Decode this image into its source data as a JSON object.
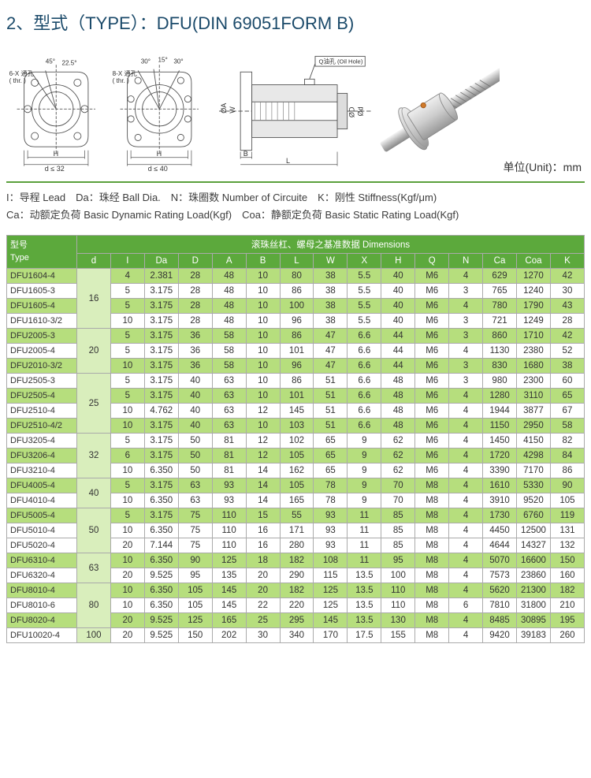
{
  "title": "2、型式（TYPE）：DFU(DIN 69051FORM B)",
  "unit_label": "单位(Unit)：mm",
  "legend_line1": "I：导程 Lead　Da：珠经 Ball Dia.　N：珠圈数 Number of Circuite　K：刚性 Stiffness(Kgf/μm)",
  "legend_line2": "Ca：动额定负荷 Basic Dynamic Rating Load(Kgf)　Coa：静额定负荷 Basic Static Rating Load(Kgf)",
  "diagram_labels": {
    "thr1": "6-X 通孔\n( thr. )",
    "angle45": "45°",
    "angle225": "22.5°",
    "H": "H",
    "d_le_32": "d ≤ 32",
    "thr2": "8-X 通孔\n( thr. )",
    "angle30": "30°",
    "angle15": "15°",
    "d_le_40": "d ≤ 40",
    "oilhole": "Q 油孔\n( Oil Hole )",
    "dimA": "ØA",
    "dimW": "W",
    "dimB": "B",
    "dimL": "L",
    "dimD": "ØD",
    "dimd": "Ød"
  },
  "table": {
    "header_top_left": "型号\nType",
    "header_top_right": "滚珠丝杠、螺母之基准数据 Dimensions",
    "columns": [
      "d",
      "I",
      "Da",
      "D",
      "A",
      "B",
      "L",
      "W",
      "X",
      "H",
      "Q",
      "N",
      "Ca",
      "Coa",
      "K"
    ],
    "column_classes": [
      "c-d",
      "c-i",
      "c-da",
      "c-D",
      "c-A",
      "c-B",
      "c-L",
      "c-W",
      "c-X",
      "c-H",
      "c-Q",
      "c-N",
      "c-Ca",
      "c-Coa",
      "c-K"
    ],
    "d_groups": [
      {
        "d": "16",
        "rows": 4
      },
      {
        "d": "20",
        "rows": 3
      },
      {
        "d": "25",
        "rows": 4
      },
      {
        "d": "32",
        "rows": 3
      },
      {
        "d": "40",
        "rows": 2
      },
      {
        "d": "50",
        "rows": 3
      },
      {
        "d": "63",
        "rows": 2
      },
      {
        "d": "80",
        "rows": 3
      },
      {
        "d": "100",
        "rows": 1
      }
    ],
    "colors": {
      "highlight": "#b6de7d",
      "d_cell": "#d9eebc",
      "plain": "#ffffff"
    },
    "rows": [
      {
        "type": "DFU1604-4",
        "hl": true,
        "cells": [
          "4",
          "2.381",
          "28",
          "48",
          "10",
          "80",
          "38",
          "5.5",
          "40",
          "M6",
          "4",
          "629",
          "1270",
          "42"
        ]
      },
      {
        "type": "DFU1605-3",
        "hl": false,
        "cells": [
          "5",
          "3.175",
          "28",
          "48",
          "10",
          "86",
          "38",
          "5.5",
          "40",
          "M6",
          "3",
          "765",
          "1240",
          "30"
        ]
      },
      {
        "type": "DFU1605-4",
        "hl": true,
        "cells": [
          "5",
          "3.175",
          "28",
          "48",
          "10",
          "100",
          "38",
          "5.5",
          "40",
          "M6",
          "4",
          "780",
          "1790",
          "43"
        ]
      },
      {
        "type": "DFU1610-3/2",
        "hl": false,
        "cells": [
          "10",
          "3.175",
          "28",
          "48",
          "10",
          "96",
          "38",
          "5.5",
          "40",
          "M6",
          "3",
          "721",
          "1249",
          "28"
        ]
      },
      {
        "type": "DFU2005-3",
        "hl": true,
        "cells": [
          "5",
          "3.175",
          "36",
          "58",
          "10",
          "86",
          "47",
          "6.6",
          "44",
          "M6",
          "3",
          "860",
          "1710",
          "42"
        ]
      },
      {
        "type": "DFU2005-4",
        "hl": false,
        "cells": [
          "5",
          "3.175",
          "36",
          "58",
          "10",
          "101",
          "47",
          "6.6",
          "44",
          "M6",
          "4",
          "1130",
          "2380",
          "52"
        ]
      },
      {
        "type": "DFU2010-3/2",
        "hl": true,
        "cells": [
          "10",
          "3.175",
          "36",
          "58",
          "10",
          "96",
          "47",
          "6.6",
          "44",
          "M6",
          "3",
          "830",
          "1680",
          "38"
        ]
      },
      {
        "type": "DFU2505-3",
        "hl": false,
        "cells": [
          "5",
          "3.175",
          "40",
          "63",
          "10",
          "86",
          "51",
          "6.6",
          "48",
          "M6",
          "3",
          "980",
          "2300",
          "60"
        ]
      },
      {
        "type": "DFU2505-4",
        "hl": true,
        "cells": [
          "5",
          "3.175",
          "40",
          "63",
          "10",
          "101",
          "51",
          "6.6",
          "48",
          "M6",
          "4",
          "1280",
          "3110",
          "65"
        ]
      },
      {
        "type": "DFU2510-4",
        "hl": false,
        "cells": [
          "10",
          "4.762",
          "40",
          "63",
          "12",
          "145",
          "51",
          "6.6",
          "48",
          "M6",
          "4",
          "1944",
          "3877",
          "67"
        ]
      },
      {
        "type": "DFU2510-4/2",
        "hl": true,
        "cells": [
          "10",
          "3.175",
          "40",
          "63",
          "10",
          "103",
          "51",
          "6.6",
          "48",
          "M6",
          "4",
          "1150",
          "2950",
          "58"
        ]
      },
      {
        "type": "DFU3205-4",
        "hl": false,
        "cells": [
          "5",
          "3.175",
          "50",
          "81",
          "12",
          "102",
          "65",
          "9",
          "62",
          "M6",
          "4",
          "1450",
          "4150",
          "82"
        ]
      },
      {
        "type": "DFU3206-4",
        "hl": true,
        "cells": [
          "6",
          "3.175",
          "50",
          "81",
          "12",
          "105",
          "65",
          "9",
          "62",
          "M6",
          "4",
          "1720",
          "4298",
          "84"
        ]
      },
      {
        "type": "DFU3210-4",
        "hl": false,
        "cells": [
          "10",
          "6.350",
          "50",
          "81",
          "14",
          "162",
          "65",
          "9",
          "62",
          "M6",
          "4",
          "3390",
          "7170",
          "86"
        ]
      },
      {
        "type": "DFU4005-4",
        "hl": true,
        "cells": [
          "5",
          "3.175",
          "63",
          "93",
          "14",
          "105",
          "78",
          "9",
          "70",
          "M8",
          "4",
          "1610",
          "5330",
          "90"
        ]
      },
      {
        "type": "DFU4010-4",
        "hl": false,
        "cells": [
          "10",
          "6.350",
          "63",
          "93",
          "14",
          "165",
          "78",
          "9",
          "70",
          "M8",
          "4",
          "3910",
          "9520",
          "105"
        ]
      },
      {
        "type": "DFU5005-4",
        "hl": true,
        "cells": [
          "5",
          "3.175",
          "75",
          "110",
          "15",
          "55",
          "93",
          "11",
          "85",
          "M8",
          "4",
          "1730",
          "6760",
          "119"
        ]
      },
      {
        "type": "DFU5010-4",
        "hl": false,
        "cells": [
          "10",
          "6.350",
          "75",
          "110",
          "16",
          "171",
          "93",
          "11",
          "85",
          "M8",
          "4",
          "4450",
          "12500",
          "131"
        ]
      },
      {
        "type": "DFU5020-4",
        "hl": false,
        "cells": [
          "20",
          "7.144",
          "75",
          "110",
          "16",
          "280",
          "93",
          "11",
          "85",
          "M8",
          "4",
          "4644",
          "14327",
          "132"
        ]
      },
      {
        "type": "DFU6310-4",
        "hl": true,
        "cells": [
          "10",
          "6.350",
          "90",
          "125",
          "18",
          "182",
          "108",
          "11",
          "95",
          "M8",
          "4",
          "5070",
          "16600",
          "150"
        ]
      },
      {
        "type": "DFU6320-4",
        "hl": false,
        "cells": [
          "20",
          "9.525",
          "95",
          "135",
          "20",
          "290",
          "115",
          "13.5",
          "100",
          "M8",
          "4",
          "7573",
          "23860",
          "160"
        ]
      },
      {
        "type": "DFU8010-4",
        "hl": true,
        "cells": [
          "10",
          "6.350",
          "105",
          "145",
          "20",
          "182",
          "125",
          "13.5",
          "110",
          "M8",
          "4",
          "5620",
          "21300",
          "182"
        ]
      },
      {
        "type": "DFU8010-6",
        "hl": false,
        "cells": [
          "10",
          "6.350",
          "105",
          "145",
          "22",
          "220",
          "125",
          "13.5",
          "110",
          "M8",
          "6",
          "7810",
          "31800",
          "210"
        ]
      },
      {
        "type": "DFU8020-4",
        "hl": true,
        "cells": [
          "20",
          "9.525",
          "125",
          "165",
          "25",
          "295",
          "145",
          "13.5",
          "130",
          "M8",
          "4",
          "8485",
          "30895",
          "195"
        ]
      },
      {
        "type": "DFU10020-4",
        "hl": false,
        "cells": [
          "20",
          "9.525",
          "150",
          "202",
          "30",
          "340",
          "170",
          "17.5",
          "155",
          "M8",
          "4",
          "9420",
          "39183",
          "260"
        ]
      }
    ]
  }
}
